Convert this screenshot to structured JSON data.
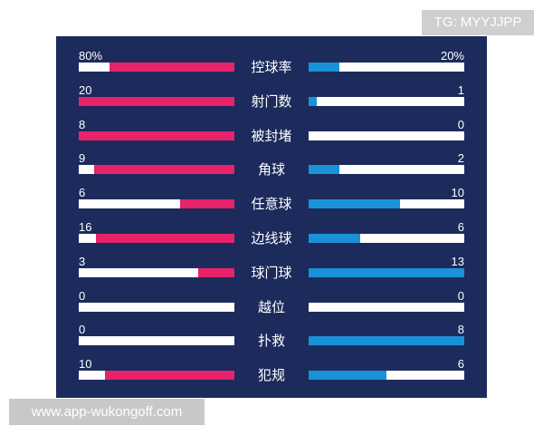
{
  "watermarks": {
    "top": "TG: MYYJJPP",
    "bottom": "www.app-wukongoff.com"
  },
  "colors": {
    "panel": "#1c2b5c",
    "left_fill": "#e8226b",
    "right_fill": "#1a92d8",
    "bar_empty": "#ffffff"
  },
  "stats": [
    {
      "label": "控球率",
      "left": "80%",
      "right": "20%",
      "left_ratio": 0.8,
      "right_ratio": 0.2
    },
    {
      "label": "射门数",
      "left": "20",
      "right": "1",
      "left_ratio": 1.0,
      "right_ratio": 0.05
    },
    {
      "label": "被封堵",
      "left": "8",
      "right": "0",
      "left_ratio": 1.0,
      "right_ratio": 0.0
    },
    {
      "label": "角球",
      "left": "9",
      "right": "2",
      "left_ratio": 0.9,
      "right_ratio": 0.2
    },
    {
      "label": "任意球",
      "left": "6",
      "right": "10",
      "left_ratio": 0.35,
      "right_ratio": 0.59
    },
    {
      "label": "边线球",
      "left": "16",
      "right": "6",
      "left_ratio": 0.89,
      "right_ratio": 0.33
    },
    {
      "label": "球门球",
      "left": "3",
      "right": "13",
      "left_ratio": 0.23,
      "right_ratio": 1.0
    },
    {
      "label": "越位",
      "left": "0",
      "right": "0",
      "left_ratio": 0.0,
      "right_ratio": 0.0
    },
    {
      "label": "扑救",
      "left": "0",
      "right": "8",
      "left_ratio": 0.0,
      "right_ratio": 1.0
    },
    {
      "label": "犯规",
      "left": "10",
      "right": "6",
      "left_ratio": 0.83,
      "right_ratio": 0.5
    }
  ]
}
